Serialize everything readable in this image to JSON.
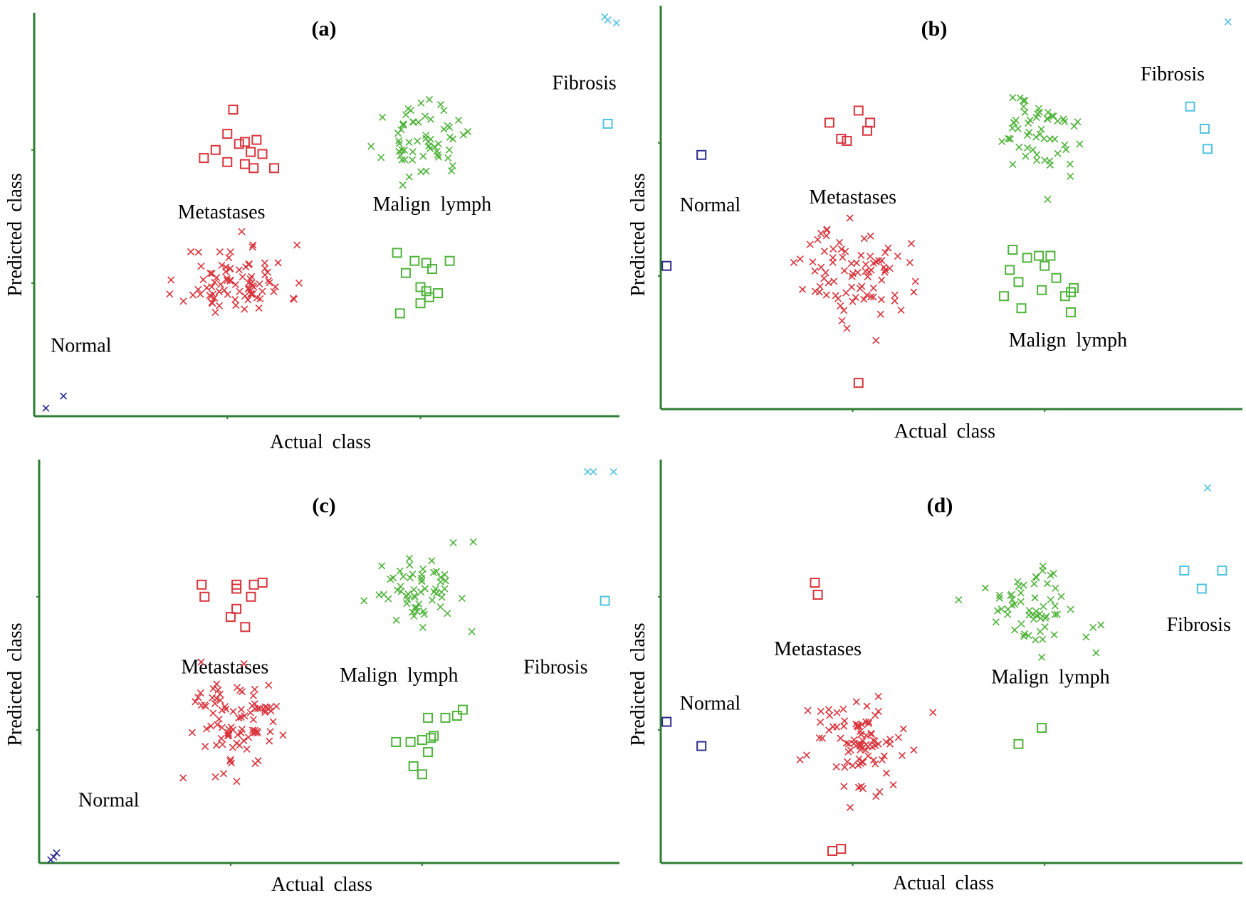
{
  "colors": {
    "axis": "#2e7d32",
    "Normal": "#2b2b8f",
    "Metastases": "#d9343c",
    "Malign lymph": "#4fb33a",
    "Fibrosis": "#4fc3e0"
  },
  "chart_data": [
    {
      "id": "a",
      "type": "scatter",
      "title": "(a)",
      "xlabel": "Actual class",
      "ylabel": "Predicted class",
      "xlim": [
        0,
        100
      ],
      "ylim": [
        0,
        100
      ],
      "labels": [
        {
          "text": "Normal",
          "x": 8,
          "y": 16
        },
        {
          "text": "Metastases",
          "x": 32,
          "y": 49
        },
        {
          "text": "Malign  lymph",
          "x": 68,
          "y": 51
        },
        {
          "text": "Fibrosis",
          "x": 94,
          "y": 81
        }
      ],
      "points": [
        {
          "cls": "Normal",
          "m": "x",
          "pts": [
            [
              2,
              2
            ],
            [
              5,
              5
            ]
          ]
        },
        {
          "cls": "Fibrosis",
          "m": "x",
          "pts": [
            [
              97.5,
              99
            ],
            [
              98,
              98.2
            ],
            [
              99.5,
              97.5
            ]
          ]
        },
        {
          "cls": "Fibrosis",
          "m": "sq",
          "pts": [
            [
              98,
              72.5
            ]
          ]
        },
        {
          "cls": "Metastases",
          "m": "sq",
          "pts": [
            [
              34,
              76
            ],
            [
              33,
              70
            ],
            [
              36,
              68
            ],
            [
              37,
              65.5
            ],
            [
              31,
              66
            ],
            [
              35,
              67.5
            ],
            [
              38,
              68.5
            ],
            [
              39,
              65
            ],
            [
              29,
              64
            ],
            [
              33,
              63
            ],
            [
              36,
              62.5
            ],
            [
              37.5,
              61.5
            ],
            [
              41,
              61.5
            ]
          ]
        },
        {
          "cls": "Malign lymph",
          "m": "sq",
          "pts": [
            [
              62,
              40.5
            ],
            [
              63.5,
              35.5
            ],
            [
              65,
              38.5
            ],
            [
              67,
              38
            ],
            [
              68,
              36.5
            ],
            [
              71,
              38.5
            ],
            [
              66,
              32
            ],
            [
              67,
              31
            ],
            [
              67.5,
              29.5
            ],
            [
              69,
              30.5
            ],
            [
              66,
              28
            ],
            [
              62.5,
              25.5
            ]
          ]
        },
        {
          "cls": "Metastases",
          "m": "x",
          "cx": 34.5,
          "cy": 33.5,
          "sx": 4.5,
          "sy": 4.5,
          "n": 85,
          "seed": 11
        },
        {
          "cls": "Malign lymph",
          "m": "x",
          "cx": 66.5,
          "cy": 68,
          "sx": 3.3,
          "sy": 4.2,
          "n": 60,
          "seed": 23
        }
      ]
    },
    {
      "id": "b",
      "type": "scatter",
      "title": "(b)",
      "xlabel": "Actual class",
      "ylabel": "Predicted class",
      "xlim": [
        0,
        100
      ],
      "ylim": [
        0,
        100
      ],
      "labels": [
        {
          "text": "Normal",
          "x": 8.5,
          "y": 49
        },
        {
          "text": "Metastases",
          "x": 33,
          "y": 51
        },
        {
          "text": "Malign  lymph",
          "x": 70,
          "y": 15.5
        },
        {
          "text": "Fibrosis",
          "x": 88,
          "y": 81.5
        }
      ],
      "points": [
        {
          "cls": "Normal",
          "m": "sq",
          "pts": [
            [
              7,
              63
            ],
            [
              1,
              35.5
            ]
          ]
        },
        {
          "cls": "Metastases",
          "m": "sq",
          "pts": [
            [
              29,
              71
            ],
            [
              34,
              74
            ],
            [
              35.5,
              69
            ],
            [
              36,
              71
            ],
            [
              31,
              67
            ],
            [
              32,
              66.5
            ],
            [
              34,
              6.5
            ]
          ]
        },
        {
          "cls": "Malign lymph",
          "m": "sq",
          "pts": [
            [
              60.5,
              39.5
            ],
            [
              63,
              37.5
            ],
            [
              65,
              38
            ],
            [
              66,
              35.5
            ],
            [
              67,
              38
            ],
            [
              60,
              34.5
            ],
            [
              61.5,
              31.5
            ],
            [
              65.5,
              29.5
            ],
            [
              68,
              32.5
            ],
            [
              70.5,
              29
            ],
            [
              71,
              30
            ],
            [
              69.5,
              28
            ],
            [
              59,
              28
            ],
            [
              62,
              25
            ],
            [
              70.5,
              24
            ]
          ]
        },
        {
          "cls": "Fibrosis",
          "m": "sq",
          "pts": [
            [
              91,
              75
            ],
            [
              93.5,
              69.5
            ],
            [
              94,
              64.5
            ]
          ]
        },
        {
          "cls": "Fibrosis",
          "m": "x",
          "pts": [
            [
              97.5,
              96
            ]
          ]
        },
        {
          "cls": "Metastases",
          "m": "x",
          "cx": 33.5,
          "cy": 34,
          "sx": 4.5,
          "sy": 5.5,
          "n": 80,
          "seed": 37
        },
        {
          "cls": "Metastases",
          "m": "x",
          "pts": [
            [
              43.5,
              29
            ],
            [
              37,
              17
            ],
            [
              32,
              20
            ]
          ]
        },
        {
          "cls": "Malign lymph",
          "m": "x",
          "cx": 64.5,
          "cy": 68,
          "sx": 3.8,
          "sy": 5,
          "n": 55,
          "seed": 51
        },
        {
          "cls": "Malign lymph",
          "m": "x",
          "pts": [
            [
              66.5,
              52
            ]
          ]
        }
      ]
    },
    {
      "id": "c",
      "type": "scatter",
      "title": "(c)",
      "xlabel": "Actual class",
      "ylabel": "Predicted class",
      "xlim": [
        0,
        100
      ],
      "ylim": [
        0,
        100
      ],
      "labels": [
        {
          "text": "Normal",
          "x": 12,
          "y": 14
        },
        {
          "text": "Metastases",
          "x": 32,
          "y": 47
        },
        {
          "text": "Malign  lymph",
          "x": 62,
          "y": 45
        },
        {
          "text": "Fibrosis",
          "x": 89,
          "y": 47
        }
      ],
      "points": [
        {
          "cls": "Normal",
          "m": "x",
          "pts": [
            [
              2.5,
              1.5
            ],
            [
              3,
              2.5
            ],
            [
              2,
              0.8
            ]
          ]
        },
        {
          "cls": "Fibrosis",
          "m": "x",
          "pts": [
            [
              94.5,
              97
            ],
            [
              95.5,
              97
            ],
            [
              99,
              97
            ]
          ]
        },
        {
          "cls": "Fibrosis",
          "m": "sq",
          "pts": [
            [
              97.5,
              65
            ]
          ]
        },
        {
          "cls": "Metastases",
          "m": "sq",
          "pts": [
            [
              28,
              69
            ],
            [
              28.5,
              66
            ],
            [
              34,
              69
            ],
            [
              34,
              68
            ],
            [
              37,
              69
            ],
            [
              38.5,
              69.5
            ],
            [
              36.5,
              66
            ],
            [
              34,
              63
            ],
            [
              33,
              61
            ],
            [
              35.5,
              58.5
            ]
          ]
        },
        {
          "cls": "Malign lymph",
          "m": "sq",
          "pts": [
            [
              67,
              36
            ],
            [
              70,
              36
            ],
            [
              72,
              36.5
            ],
            [
              73,
              38
            ],
            [
              68,
              31.5
            ],
            [
              67.5,
              31
            ],
            [
              66,
              30.5
            ],
            [
              64,
              30
            ],
            [
              61.5,
              30
            ],
            [
              67,
              27.5
            ],
            [
              64.5,
              24
            ],
            [
              66,
              22
            ]
          ]
        },
        {
          "cls": "Metastases",
          "m": "x",
          "cx": 34,
          "cy": 34.5,
          "sx": 4.3,
          "sy": 6.5,
          "n": 90,
          "seed": 71
        },
        {
          "cls": "Malign lymph",
          "m": "x",
          "cx": 66,
          "cy": 67.5,
          "sx": 3.6,
          "sy": 4.8,
          "n": 60,
          "seed": 83
        }
      ]
    },
    {
      "id": "d",
      "type": "scatter",
      "title": "(d)",
      "xlabel": "Actual class",
      "ylabel": "Predicted class",
      "xlim": [
        0,
        100
      ],
      "ylim": [
        0,
        100
      ],
      "labels": [
        {
          "text": "Normal",
          "x": 8.5,
          "y": 38
        },
        {
          "text": "Metastases",
          "x": 27,
          "y": 51.5
        },
        {
          "text": "Malign  lymph",
          "x": 67,
          "y": 44.5
        },
        {
          "text": "Fibrosis",
          "x": 92.5,
          "y": 57.5
        }
      ],
      "points": [
        {
          "cls": "Normal",
          "m": "sq",
          "pts": [
            [
              1,
              35
            ],
            [
              7,
              29
            ]
          ]
        },
        {
          "cls": "Metastases",
          "m": "sq",
          "pts": [
            [
              26.5,
              69.5
            ],
            [
              27,
              66.5
            ],
            [
              29.5,
              3
            ],
            [
              31,
              3.5
            ]
          ]
        },
        {
          "cls": "Malign lymph",
          "m": "sq",
          "pts": [
            [
              61.5,
              29.5
            ],
            [
              65.5,
              33.5
            ]
          ]
        },
        {
          "cls": "Fibrosis",
          "m": "sq",
          "pts": [
            [
              90,
              72.5
            ],
            [
              96.5,
              72.5
            ],
            [
              93,
              68
            ]
          ]
        },
        {
          "cls": "Fibrosis",
          "m": "x",
          "pts": [
            [
              94,
              93
            ]
          ]
        },
        {
          "cls": "Metastases",
          "m": "x",
          "cx": 33,
          "cy": 30,
          "sx": 4.5,
          "sy": 5.5,
          "n": 85,
          "seed": 97
        },
        {
          "cls": "Metastases",
          "m": "x",
          "pts": [
            [
              43.5,
              28
            ],
            [
              37,
              16.5
            ],
            [
              31.5,
              19
            ]
          ]
        },
        {
          "cls": "Malign lymph",
          "m": "x",
          "cx": 64.5,
          "cy": 63.5,
          "sx": 4.5,
          "sy": 5,
          "n": 60,
          "seed": 109
        },
        {
          "cls": "Malign lymph",
          "m": "x",
          "pts": [
            [
              65.5,
              51
            ]
          ]
        }
      ]
    }
  ]
}
